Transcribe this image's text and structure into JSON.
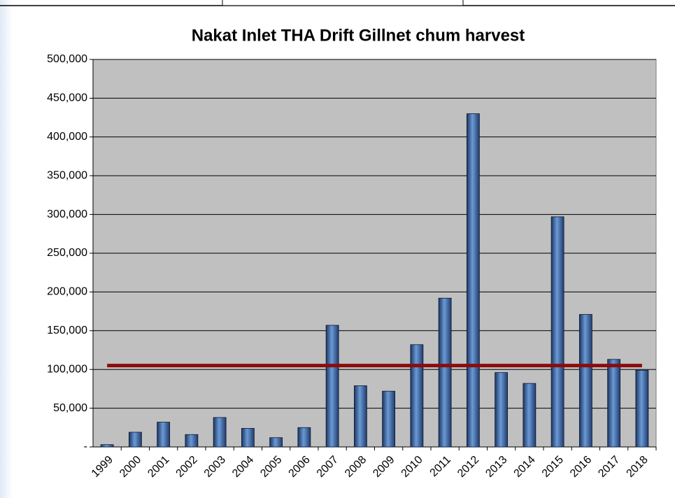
{
  "chart_data": {
    "type": "bar",
    "title": "Nakat Inlet THA Drift Gillnet chum harvest",
    "categories": [
      "1999",
      "2000",
      "2001",
      "2002",
      "2003",
      "2004",
      "2005",
      "2006",
      "2007",
      "2008",
      "2009",
      "2010",
      "2011",
      "2012",
      "2013",
      "2014",
      "2015",
      "2016",
      "2017",
      "2018"
    ],
    "values": [
      3000,
      19000,
      32000,
      16000,
      38000,
      24000,
      12000,
      25000,
      157000,
      79000,
      72000,
      132000,
      192000,
      430000,
      96000,
      82000,
      297000,
      171000,
      113000,
      99000
    ],
    "color": "#3f6fb0",
    "reference_line": {
      "value": 105000,
      "color": "#8b0c0c"
    },
    "ylim": [
      0,
      500000
    ],
    "yticks": [
      {
        "value": 0,
        "label": "-"
      },
      {
        "value": 50000,
        "label": "50,000"
      },
      {
        "value": 100000,
        "label": "100,000"
      },
      {
        "value": 150000,
        "label": "150,000"
      },
      {
        "value": 200000,
        "label": "200,000"
      },
      {
        "value": 250000,
        "label": "250,000"
      },
      {
        "value": 300000,
        "label": "300,000"
      },
      {
        "value": 350000,
        "label": "350,000"
      },
      {
        "value": 400000,
        "label": "400,000"
      },
      {
        "value": 450000,
        "label": "450,000"
      },
      {
        "value": 500000,
        "label": "500,000"
      }
    ],
    "grid": true
  }
}
